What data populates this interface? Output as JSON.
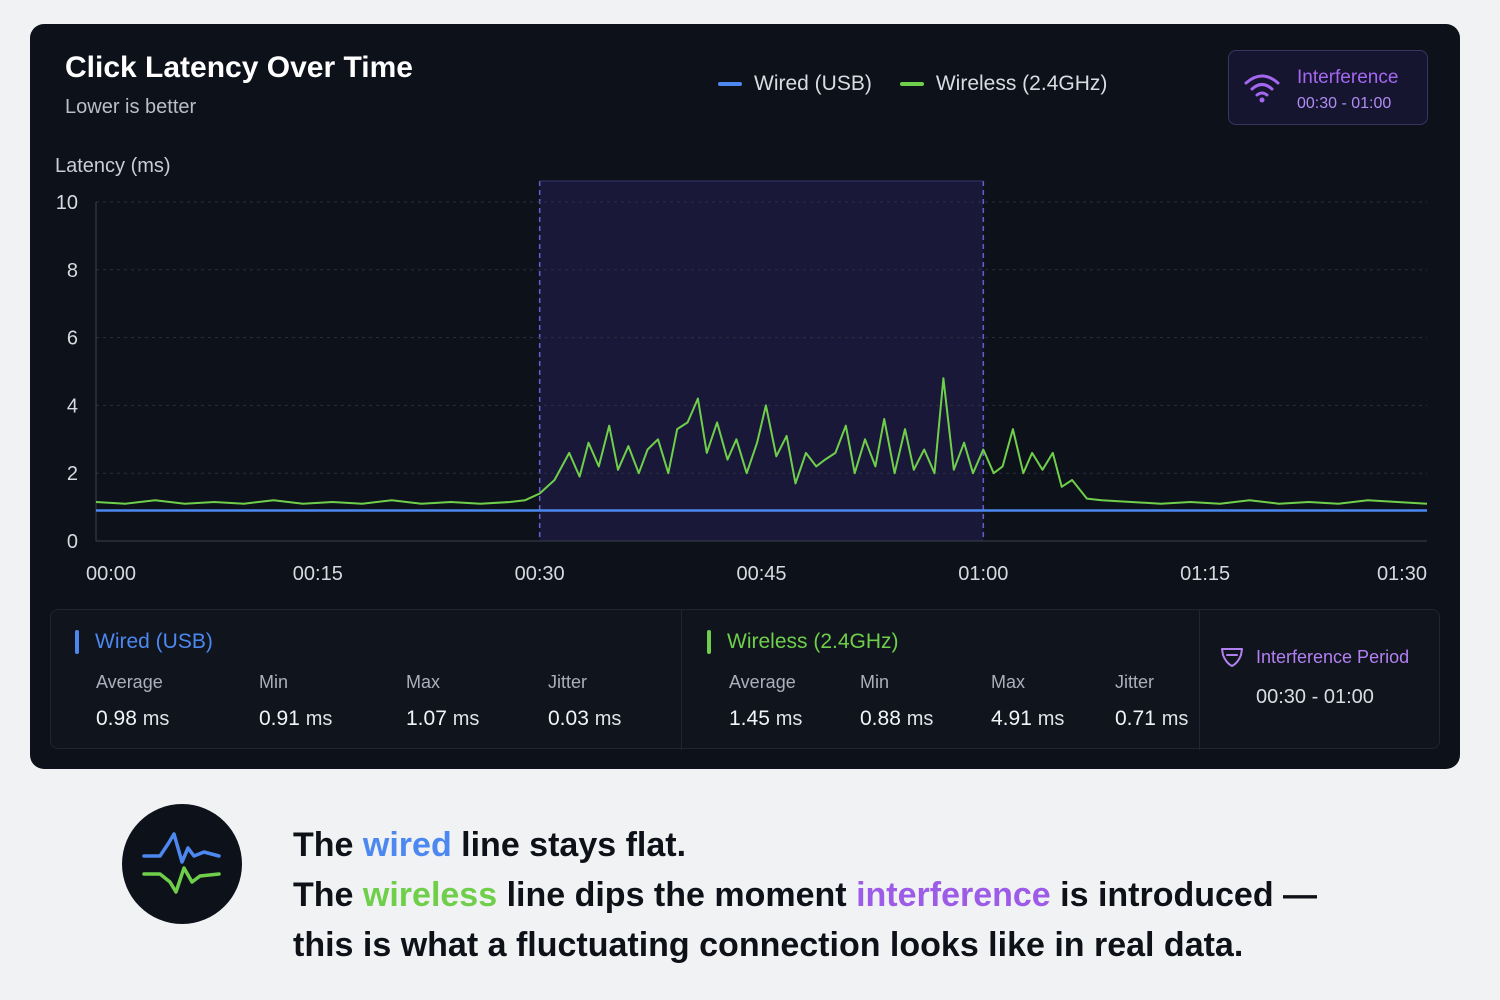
{
  "chart_data": {
    "type": "line",
    "title": "Click Latency Over Time",
    "subtitle": "Lower is better",
    "ylabel": "Latency (ms)",
    "ylim": [
      0,
      10
    ],
    "yticks": [
      "0",
      "2",
      "4",
      "6",
      "8",
      "10"
    ],
    "xlim": [
      0,
      90
    ],
    "xticks": [
      {
        "t": 0,
        "label": "00:00"
      },
      {
        "t": 15,
        "label": "00:15"
      },
      {
        "t": 30,
        "label": "00:30"
      },
      {
        "t": 45,
        "label": "00:45"
      },
      {
        "t": 60,
        "label": "01:00"
      },
      {
        "t": 75,
        "label": "01:15"
      },
      {
        "t": 90,
        "label": "01:30"
      }
    ],
    "grid": true,
    "legend_position": "top-center",
    "highlight_region": {
      "start": 30,
      "end": 60,
      "label": "Interference",
      "range_label": "00:30 - 01:00"
    },
    "series": [
      {
        "name": "Wired (USB)",
        "color": "#4d88f0",
        "points": [
          [
            0,
            0.9
          ],
          [
            90,
            0.9
          ]
        ]
      },
      {
        "name": "Wireless (2.4GHz)",
        "color": "#6fcf4b",
        "points": [
          [
            0,
            1.15
          ],
          [
            2,
            1.1
          ],
          [
            4,
            1.2
          ],
          [
            6,
            1.1
          ],
          [
            8,
            1.15
          ],
          [
            10,
            1.1
          ],
          [
            12,
            1.2
          ],
          [
            14,
            1.1
          ],
          [
            16,
            1.15
          ],
          [
            18,
            1.1
          ],
          [
            20,
            1.2
          ],
          [
            22,
            1.1
          ],
          [
            24,
            1.15
          ],
          [
            26,
            1.1
          ],
          [
            28,
            1.15
          ],
          [
            29,
            1.2
          ],
          [
            30,
            1.4
          ],
          [
            31,
            1.8
          ],
          [
            32,
            2.6
          ],
          [
            32.7,
            1.9
          ],
          [
            33.3,
            2.9
          ],
          [
            34,
            2.2
          ],
          [
            34.7,
            3.4
          ],
          [
            35.3,
            2.1
          ],
          [
            36,
            2.8
          ],
          [
            36.7,
            2.0
          ],
          [
            37.3,
            2.7
          ],
          [
            38,
            3.0
          ],
          [
            38.7,
            2.0
          ],
          [
            39.3,
            3.3
          ],
          [
            40,
            3.5
          ],
          [
            40.7,
            4.2
          ],
          [
            41.3,
            2.6
          ],
          [
            42,
            3.5
          ],
          [
            42.7,
            2.4
          ],
          [
            43.3,
            3.0
          ],
          [
            44,
            2.0
          ],
          [
            44.7,
            2.9
          ],
          [
            45.3,
            4.0
          ],
          [
            46,
            2.5
          ],
          [
            46.7,
            3.1
          ],
          [
            47.3,
            1.7
          ],
          [
            48,
            2.6
          ],
          [
            48.7,
            2.2
          ],
          [
            49.3,
            2.4
          ],
          [
            50,
            2.6
          ],
          [
            50.7,
            3.4
          ],
          [
            51.3,
            2.0
          ],
          [
            52,
            3.0
          ],
          [
            52.7,
            2.2
          ],
          [
            53.3,
            3.6
          ],
          [
            54,
            2.0
          ],
          [
            54.7,
            3.3
          ],
          [
            55.3,
            2.1
          ],
          [
            56,
            2.7
          ],
          [
            56.7,
            2.0
          ],
          [
            57.3,
            4.8
          ],
          [
            58,
            2.1
          ],
          [
            58.7,
            2.9
          ],
          [
            59.3,
            2.0
          ],
          [
            60,
            2.7
          ],
          [
            60.7,
            2.0
          ],
          [
            61.3,
            2.2
          ],
          [
            62,
            3.3
          ],
          [
            62.7,
            2.0
          ],
          [
            63.3,
            2.6
          ],
          [
            64,
            2.1
          ],
          [
            64.7,
            2.6
          ],
          [
            65.3,
            1.6
          ],
          [
            66,
            1.8
          ],
          [
            67,
            1.25
          ],
          [
            68,
            1.2
          ],
          [
            70,
            1.15
          ],
          [
            72,
            1.1
          ],
          [
            74,
            1.15
          ],
          [
            76,
            1.1
          ],
          [
            78,
            1.2
          ],
          [
            80,
            1.1
          ],
          [
            82,
            1.15
          ],
          [
            84,
            1.1
          ],
          [
            86,
            1.2
          ],
          [
            88,
            1.15
          ],
          [
            90,
            1.1
          ]
        ]
      }
    ]
  },
  "stats": {
    "wired": {
      "name": "Wired (USB)",
      "color": "#4d88f0",
      "metrics": [
        {
          "label": "Average",
          "value": "0.98",
          "unit": "ms"
        },
        {
          "label": "Min",
          "value": "0.91",
          "unit": "ms"
        },
        {
          "label": "Max",
          "value": "1.07",
          "unit": "ms"
        },
        {
          "label": "Jitter",
          "value": "0.03",
          "unit": "ms"
        }
      ]
    },
    "wireless": {
      "name": "Wireless (2.4GHz)",
      "color": "#6fcf4b",
      "metrics": [
        {
          "label": "Average",
          "value": "1.45",
          "unit": "ms"
        },
        {
          "label": "Min",
          "value": "0.88",
          "unit": "ms"
        },
        {
          "label": "Max",
          "value": "4.91",
          "unit": "ms"
        },
        {
          "label": "Jitter",
          "value": "0.71",
          "unit": "ms"
        }
      ]
    },
    "interference": {
      "label": "Interference Period",
      "range": "00:30 - 01:00",
      "icon": "shield-icon"
    }
  },
  "badge": {
    "title": "Interference",
    "range": "00:30 - 01:00",
    "icon": "wifi-icon"
  },
  "footer": {
    "icon": "pulse-icon",
    "line1": [
      "The ",
      "wired",
      " line stays flat."
    ],
    "line2": [
      "The ",
      "wireless",
      " line dips the moment ",
      "interference",
      " is introduced —"
    ],
    "line3": "this is what a fluctuating connection looks like in real data."
  }
}
